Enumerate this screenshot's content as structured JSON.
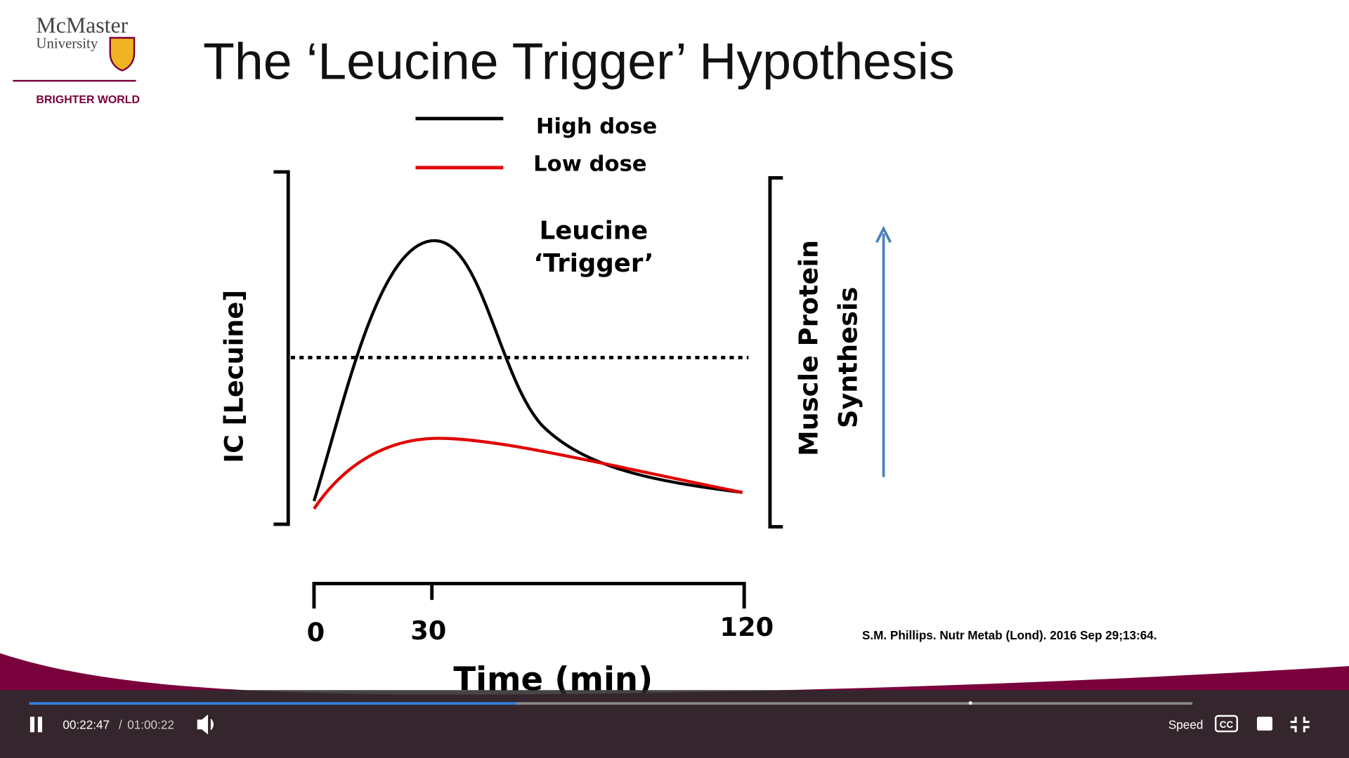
{
  "logo": {
    "name": "McMaster",
    "sub": "University",
    "tagline": "BRIGHTER WORLD"
  },
  "slide": {
    "title": "The ‘Leucine Trigger’ Hypothesis",
    "legend": [
      "High dose",
      "Low dose"
    ],
    "annotation": [
      "Leucine",
      "‘Trigger’"
    ],
    "y_label": "IC [Lecuine]",
    "y2_label": [
      "Muscle Protein",
      "Synthesis"
    ],
    "x_ticks": [
      "0",
      "30",
      "120"
    ],
    "x_label": "Time (min)",
    "citation": "S.M. Phillips. Nutr Metab (Lond). 2016 Sep 29;13:64."
  },
  "player": {
    "elapsed": "00:22:47",
    "separator": "/",
    "duration": "01:00:22",
    "speed": "Speed",
    "cc": "CC"
  }
}
